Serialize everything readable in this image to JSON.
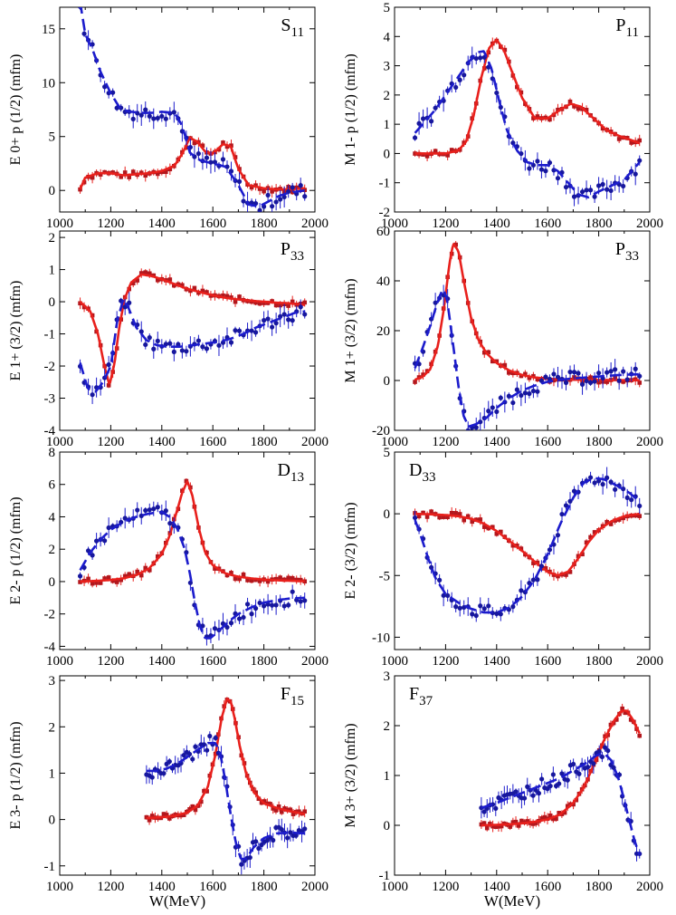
{
  "figure": {
    "xlabel": "W(MeV)"
  },
  "colors": {
    "red": "#e8201c",
    "blue": "#1c1ccc",
    "red_point": "#b3171d",
    "blue_point": "#17179e"
  },
  "chart_data": [
    {
      "type": "line",
      "label_main": "S",
      "label_sub": "11",
      "ylabel": [
        [
          "E"
        ],
        [
          "0+",
          "p-sub"
        ],
        [
          "p",
          "sub-small"
        ],
        [
          "(1/2) (mfm)",
          ""
        ]
      ],
      "ylabel_text": "E 0+ p (1/2) (mfm)",
      "xlim": [
        1000,
        2000
      ],
      "ylim": [
        -2,
        17
      ],
      "xticks": [
        1000,
        1200,
        1400,
        1600,
        1800,
        2000
      ],
      "yticks": [
        0,
        5,
        10,
        15
      ],
      "series": [
        {
          "name": "red",
          "x": [
            1080,
            1100,
            1150,
            1200,
            1250,
            1300,
            1350,
            1400,
            1450,
            1480,
            1510,
            1540,
            1570,
            1600,
            1640,
            1670,
            1700,
            1740,
            1800,
            1850,
            1900,
            1960
          ],
          "y": [
            0.1,
            1.2,
            1.6,
            1.6,
            1.4,
            1.5,
            1.6,
            1.8,
            2.3,
            3.4,
            4.9,
            4.5,
            3.6,
            3.4,
            4.3,
            4.1,
            2.0,
            0.5,
            0.2,
            0.1,
            0.1,
            0.2
          ]
        },
        {
          "name": "blue",
          "x": [
            1080,
            1100,
            1130,
            1160,
            1200,
            1240,
            1280,
            1320,
            1360,
            1400,
            1450,
            1480,
            1510,
            1550,
            1600,
            1650,
            1700,
            1740,
            1780,
            1820,
            1860,
            1900,
            1960
          ],
          "y": [
            17.5,
            14.5,
            13,
            11,
            9,
            7.5,
            7.3,
            7.2,
            7.2,
            7.3,
            7.2,
            6.0,
            3.5,
            2.8,
            2.5,
            2.2,
            0.5,
            -1.3,
            -1.5,
            -1.0,
            -0.5,
            -0.2,
            0.0
          ]
        }
      ]
    },
    {
      "type": "line",
      "label_main": "P",
      "label_sub": "11",
      "ylabel_text": "M 1- p (1/2) (mfm)",
      "xlim": [
        1000,
        2000
      ],
      "ylim": [
        -2,
        5
      ],
      "xticks": [
        1000,
        1200,
        1400,
        1600,
        1800,
        2000
      ],
      "yticks": [
        -2,
        -1,
        0,
        1,
        2,
        3,
        4,
        5
      ],
      "series": [
        {
          "name": "red",
          "x": [
            1080,
            1150,
            1200,
            1250,
            1280,
            1310,
            1340,
            1370,
            1400,
            1430,
            1460,
            1500,
            1550,
            1600,
            1650,
            1690,
            1730,
            1780,
            1830,
            1880,
            1930,
            1960
          ],
          "y": [
            0,
            0,
            0,
            0.1,
            0.4,
            1.3,
            2.6,
            3.6,
            3.9,
            3.5,
            2.8,
            1.9,
            1.2,
            1.2,
            1.5,
            1.7,
            1.6,
            1.2,
            0.8,
            0.6,
            0.45,
            0.35
          ]
        },
        {
          "name": "blue",
          "x": [
            1080,
            1120,
            1160,
            1200,
            1240,
            1280,
            1320,
            1350,
            1380,
            1410,
            1440,
            1480,
            1520,
            1560,
            1600,
            1640,
            1680,
            1720,
            1760,
            1800,
            1850,
            1900,
            1960
          ],
          "y": [
            0.7,
            1.1,
            1.5,
            2.0,
            2.5,
            3.0,
            3.45,
            3.5,
            2.9,
            1.8,
            0.8,
            0.1,
            -0.3,
            -0.4,
            -0.4,
            -0.6,
            -1.0,
            -1.4,
            -1.5,
            -1.3,
            -1.1,
            -0.9,
            -0.3
          ]
        }
      ]
    },
    {
      "type": "line",
      "label_main": "P",
      "label_sub": "33",
      "ylabel_text": "E 1+ (3/2) (mfm)",
      "xlim": [
        1000,
        2000
      ],
      "ylim": [
        -4,
        2.2
      ],
      "xticks": [
        1000,
        1200,
        1400,
        1600,
        1800,
        2000
      ],
      "yticks": [
        -4,
        -3,
        -2,
        -1,
        0,
        1,
        2
      ],
      "series": [
        {
          "name": "red",
          "x": [
            1080,
            1120,
            1150,
            1175,
            1195,
            1215,
            1235,
            1255,
            1280,
            1320,
            1360,
            1400,
            1450,
            1500,
            1550,
            1600,
            1650,
            1700,
            1750,
            1800,
            1850,
            1900,
            1960
          ],
          "y": [
            0,
            -0.3,
            -1.0,
            -2.0,
            -2.6,
            -1.9,
            -0.7,
            0.1,
            0.6,
            0.85,
            0.8,
            0.7,
            0.55,
            0.4,
            0.3,
            0.2,
            0.12,
            0.07,
            0.03,
            0.0,
            -0.03,
            -0.05,
            -0.1
          ]
        },
        {
          "name": "blue",
          "x": [
            1080,
            1110,
            1140,
            1170,
            1200,
            1225,
            1250,
            1270,
            1300,
            1340,
            1380,
            1420,
            1470,
            1520,
            1570,
            1620,
            1670,
            1720,
            1770,
            1820,
            1870,
            1920,
            1960
          ],
          "y": [
            -1.9,
            -2.7,
            -2.8,
            -2.5,
            -2.0,
            -0.6,
            0.1,
            -0.2,
            -0.8,
            -1.2,
            -1.35,
            -1.4,
            -1.4,
            -1.35,
            -1.3,
            -1.25,
            -1.15,
            -1.0,
            -0.8,
            -0.65,
            -0.5,
            -0.35,
            -0.3
          ]
        }
      ]
    },
    {
      "type": "line",
      "label_main": "P",
      "label_sub": "33",
      "ylabel_text": "M 1+ (3/2) (mfm)",
      "xlim": [
        1000,
        2000
      ],
      "ylim": [
        -20,
        60
      ],
      "xticks": [
        1000,
        1200,
        1400,
        1600,
        1800,
        2000
      ],
      "yticks": [
        -20,
        0,
        20,
        40,
        60
      ],
      "series": [
        {
          "name": "red",
          "x": [
            1080,
            1110,
            1140,
            1170,
            1195,
            1215,
            1230,
            1250,
            1275,
            1300,
            1330,
            1360,
            1400,
            1450,
            1500,
            1550,
            1600,
            1700,
            1800,
            1900,
            1960
          ],
          "y": [
            0.3,
            1.5,
            4.5,
            14,
            30,
            47,
            55,
            52,
            38,
            25,
            16,
            11,
            7,
            4,
            2.2,
            1.2,
            0.7,
            0.3,
            0.2,
            0.1,
            0.1
          ]
        },
        {
          "name": "blue",
          "x": [
            1080,
            1110,
            1140,
            1170,
            1190,
            1205,
            1225,
            1250,
            1270,
            1290,
            1320,
            1360,
            1400,
            1450,
            1500,
            1550,
            1600,
            1650,
            1700,
            1750,
            1800,
            1850,
            1900,
            1960
          ],
          "y": [
            5,
            13,
            22,
            32,
            37,
            33,
            18,
            -2,
            -14,
            -18.5,
            -17.5,
            -15,
            -11,
            -7,
            -4,
            -2,
            -0.5,
            0.3,
            0.8,
            1.2,
            1.6,
            2.0,
            2.3,
            2.5
          ]
        }
      ]
    },
    {
      "type": "line",
      "label_main": "D",
      "label_sub": "13",
      "ylabel_text": "E 2- p (1/2) (mfm)",
      "xlim": [
        1000,
        2000
      ],
      "ylim": [
        -4.2,
        8
      ],
      "xticks": [
        1000,
        1200,
        1400,
        1600,
        1800,
        2000
      ],
      "yticks": [
        -4,
        -2,
        0,
        2,
        4,
        6,
        8
      ],
      "series": [
        {
          "name": "red",
          "x": [
            1080,
            1150,
            1200,
            1250,
            1300,
            1350,
            1400,
            1430,
            1460,
            1480,
            1500,
            1520,
            1545,
            1570,
            1600,
            1650,
            1700,
            1750,
            1800,
            1850,
            1900,
            1960
          ],
          "y": [
            0,
            0.05,
            0.1,
            0.2,
            0.4,
            0.8,
            1.7,
            2.8,
            4.4,
            5.5,
            6.2,
            5.3,
            3.3,
            1.8,
            1.0,
            0.5,
            0.3,
            0.2,
            0.12,
            0.08,
            0.05,
            0.02
          ]
        },
        {
          "name": "blue",
          "x": [
            1080,
            1120,
            1160,
            1200,
            1250,
            1300,
            1350,
            1400,
            1430,
            1460,
            1490,
            1510,
            1530,
            1550,
            1570,
            1590,
            1620,
            1660,
            1700,
            1750,
            1800,
            1850,
            1900,
            1960
          ],
          "y": [
            0.7,
            1.8,
            2.6,
            3.2,
            3.7,
            4.0,
            4.2,
            4.3,
            4.0,
            3.3,
            2.0,
            0.5,
            -1.3,
            -2.8,
            -3.5,
            -3.5,
            -3.1,
            -2.5,
            -2.0,
            -1.6,
            -1.3,
            -1.15,
            -1.05,
            -1.0
          ]
        }
      ]
    },
    {
      "type": "line",
      "label_main": "D",
      "label_sub": "33",
      "ylabel_text": "E 2- (3/2) (mfm)",
      "xlim": [
        1000,
        2000
      ],
      "ylim": [
        -11,
        5
      ],
      "xticks": [
        1000,
        1200,
        1400,
        1600,
        1800,
        2000
      ],
      "yticks": [
        -10,
        -5,
        0,
        5
      ],
      "series": [
        {
          "name": "red",
          "x": [
            1080,
            1150,
            1200,
            1250,
            1300,
            1350,
            1400,
            1450,
            1500,
            1550,
            1600,
            1640,
            1680,
            1720,
            1760,
            1800,
            1850,
            1900,
            1960
          ],
          "y": [
            0,
            -0.05,
            -0.1,
            -0.2,
            -0.4,
            -0.8,
            -1.4,
            -2.2,
            -3.0,
            -3.9,
            -4.7,
            -5.0,
            -4.7,
            -3.6,
            -2.3,
            -1.3,
            -0.6,
            -0.2,
            0.0
          ]
        },
        {
          "name": "blue",
          "x": [
            1080,
            1100,
            1130,
            1160,
            1200,
            1250,
            1300,
            1350,
            1400,
            1450,
            1500,
            1550,
            1600,
            1650,
            1700,
            1740,
            1780,
            1820,
            1870,
            1920,
            1960
          ],
          "y": [
            -0.5,
            -1.6,
            -3.5,
            -5.2,
            -6.5,
            -7.2,
            -7.7,
            -8.0,
            -8.0,
            -7.6,
            -6.7,
            -5.3,
            -3.3,
            -0.8,
            1.3,
            2.5,
            2.9,
            2.8,
            2.3,
            1.7,
            1.0
          ]
        }
      ]
    },
    {
      "type": "line",
      "label_main": "F",
      "label_sub": "15",
      "ylabel_text": "E 3- p (1/2) (mfm)",
      "xlim": [
        1000,
        2000
      ],
      "ylim": [
        -1.2,
        3.1
      ],
      "xticks": [
        1000,
        1200,
        1400,
        1600,
        1800,
        2000
      ],
      "yticks": [
        -1,
        0,
        1,
        2,
        3
      ],
      "series": [
        {
          "name": "red",
          "x": [
            1340,
            1400,
            1450,
            1500,
            1540,
            1580,
            1610,
            1635,
            1655,
            1670,
            1685,
            1705,
            1730,
            1760,
            1800,
            1850,
            1900,
            1960
          ],
          "y": [
            0.03,
            0.05,
            0.08,
            0.15,
            0.3,
            0.7,
            1.4,
            2.2,
            2.6,
            2.55,
            2.2,
            1.6,
            1.0,
            0.6,
            0.35,
            0.25,
            0.18,
            0.12
          ]
        },
        {
          "name": "blue",
          "x": [
            1340,
            1380,
            1420,
            1460,
            1500,
            1540,
            1580,
            1610,
            1630,
            1650,
            1670,
            1690,
            1710,
            1730,
            1760,
            1800,
            1850,
            1900,
            1960
          ],
          "y": [
            1.05,
            1.05,
            1.1,
            1.2,
            1.35,
            1.5,
            1.65,
            1.65,
            1.4,
            0.8,
            0.1,
            -0.5,
            -0.85,
            -0.85,
            -0.6,
            -0.4,
            -0.3,
            -0.28,
            -0.3
          ]
        }
      ]
    },
    {
      "type": "line",
      "label_main": "F",
      "label_sub": "37",
      "ylabel_text": "M 3+ (3/2) (mfm)",
      "xlim": [
        1000,
        2000
      ],
      "ylim": [
        -1,
        3
      ],
      "xticks": [
        1000,
        1200,
        1400,
        1600,
        1800,
        2000
      ],
      "yticks": [
        -1,
        0,
        1,
        2,
        3
      ],
      "series": [
        {
          "name": "red",
          "x": [
            1340,
            1400,
            1450,
            1500,
            1550,
            1600,
            1650,
            1700,
            1740,
            1780,
            1820,
            1860,
            1890,
            1910,
            1930,
            1950,
            1960
          ],
          "y": [
            0,
            0.01,
            0.02,
            0.04,
            0.07,
            0.12,
            0.22,
            0.45,
            0.75,
            1.2,
            1.7,
            2.1,
            2.3,
            2.3,
            2.15,
            1.95,
            1.85
          ]
        },
        {
          "name": "blue",
          "x": [
            1340,
            1400,
            1450,
            1500,
            1550,
            1600,
            1650,
            1700,
            1750,
            1790,
            1820,
            1850,
            1880,
            1910,
            1940,
            1960
          ],
          "y": [
            0.35,
            0.45,
            0.55,
            0.65,
            0.75,
            0.85,
            0.95,
            1.1,
            1.25,
            1.4,
            1.45,
            1.3,
            0.9,
            0.3,
            -0.3,
            -0.6
          ]
        }
      ]
    }
  ]
}
